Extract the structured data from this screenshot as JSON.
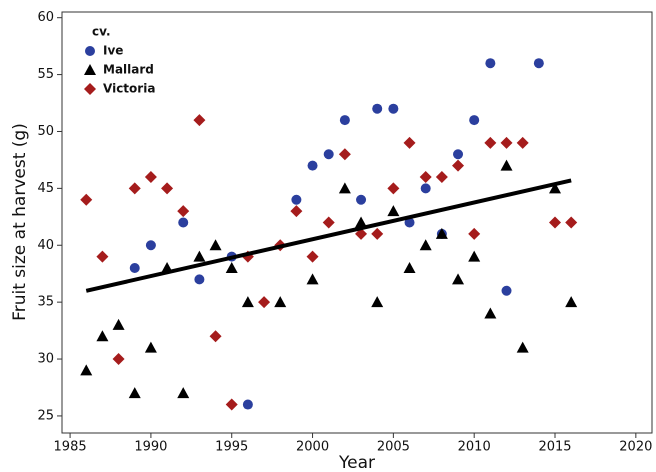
{
  "chart_data": {
    "type": "scatter",
    "x_label": "Year",
    "y_label": "Fruit size at harvest (g)",
    "legend_title": "cv.",
    "legend_position": "top-left",
    "xlim": [
      1984.5,
      2021
    ],
    "xticks": [
      1985,
      1990,
      1995,
      2000,
      2005,
      2010,
      2015,
      2020
    ],
    "ylim": [
      23.5,
      60.5
    ],
    "yticks": [
      25,
      30,
      35,
      40,
      45,
      50,
      55,
      60
    ],
    "series": [
      {
        "name": "Ive",
        "color": "#2b3f9e",
        "marker": "circle",
        "x": [
          1989,
          1990,
          1992,
          1993,
          1995,
          1996,
          1999,
          2000,
          2001,
          2002,
          2003,
          2004,
          2005,
          2006,
          2007,
          2008,
          2009,
          2010,
          2011,
          2012,
          2014
        ],
        "values": [
          38,
          40,
          42,
          37,
          39,
          26,
          44,
          47,
          48,
          51,
          44,
          52,
          52,
          42,
          45,
          41,
          48,
          51,
          56,
          36,
          56
        ]
      },
      {
        "name": "Mallard",
        "color": "#000000",
        "marker": "triangle",
        "x": [
          1986,
          1987,
          1988,
          1989,
          1990,
          1991,
          1992,
          1993,
          1994,
          1995,
          1996,
          1998,
          2000,
          2002,
          2003,
          2004,
          2005,
          2006,
          2007,
          2008,
          2009,
          2010,
          2011,
          2012,
          2013,
          2015,
          2016
        ],
        "values": [
          29,
          32,
          33,
          27,
          31,
          38,
          27,
          39,
          40,
          38,
          35,
          35,
          37,
          45,
          42,
          35,
          43,
          38,
          40,
          41,
          37,
          39,
          34,
          47,
          31,
          45,
          35
        ]
      },
      {
        "name": "Victoria",
        "color": "#a51c1c",
        "marker": "diamond",
        "x": [
          1986,
          1987,
          1988,
          1989,
          1990,
          1991,
          1992,
          1993,
          1994,
          1995,
          1996,
          1997,
          1998,
          1999,
          2000,
          2001,
          2002,
          2003,
          2004,
          2005,
          2006,
          2007,
          2008,
          2009,
          2010,
          2011,
          2012,
          2013,
          2015,
          2016
        ],
        "values": [
          44,
          39,
          30,
          45,
          46,
          45,
          43,
          51,
          32,
          26,
          39,
          35,
          40,
          43,
          39,
          42,
          48,
          41,
          41,
          45,
          49,
          46,
          46,
          47,
          41,
          49,
          49,
          49,
          42,
          42
        ]
      }
    ],
    "trend": {
      "color": "#000000",
      "x": [
        1986,
        2016
      ],
      "values": [
        36,
        45.7
      ]
    }
  }
}
